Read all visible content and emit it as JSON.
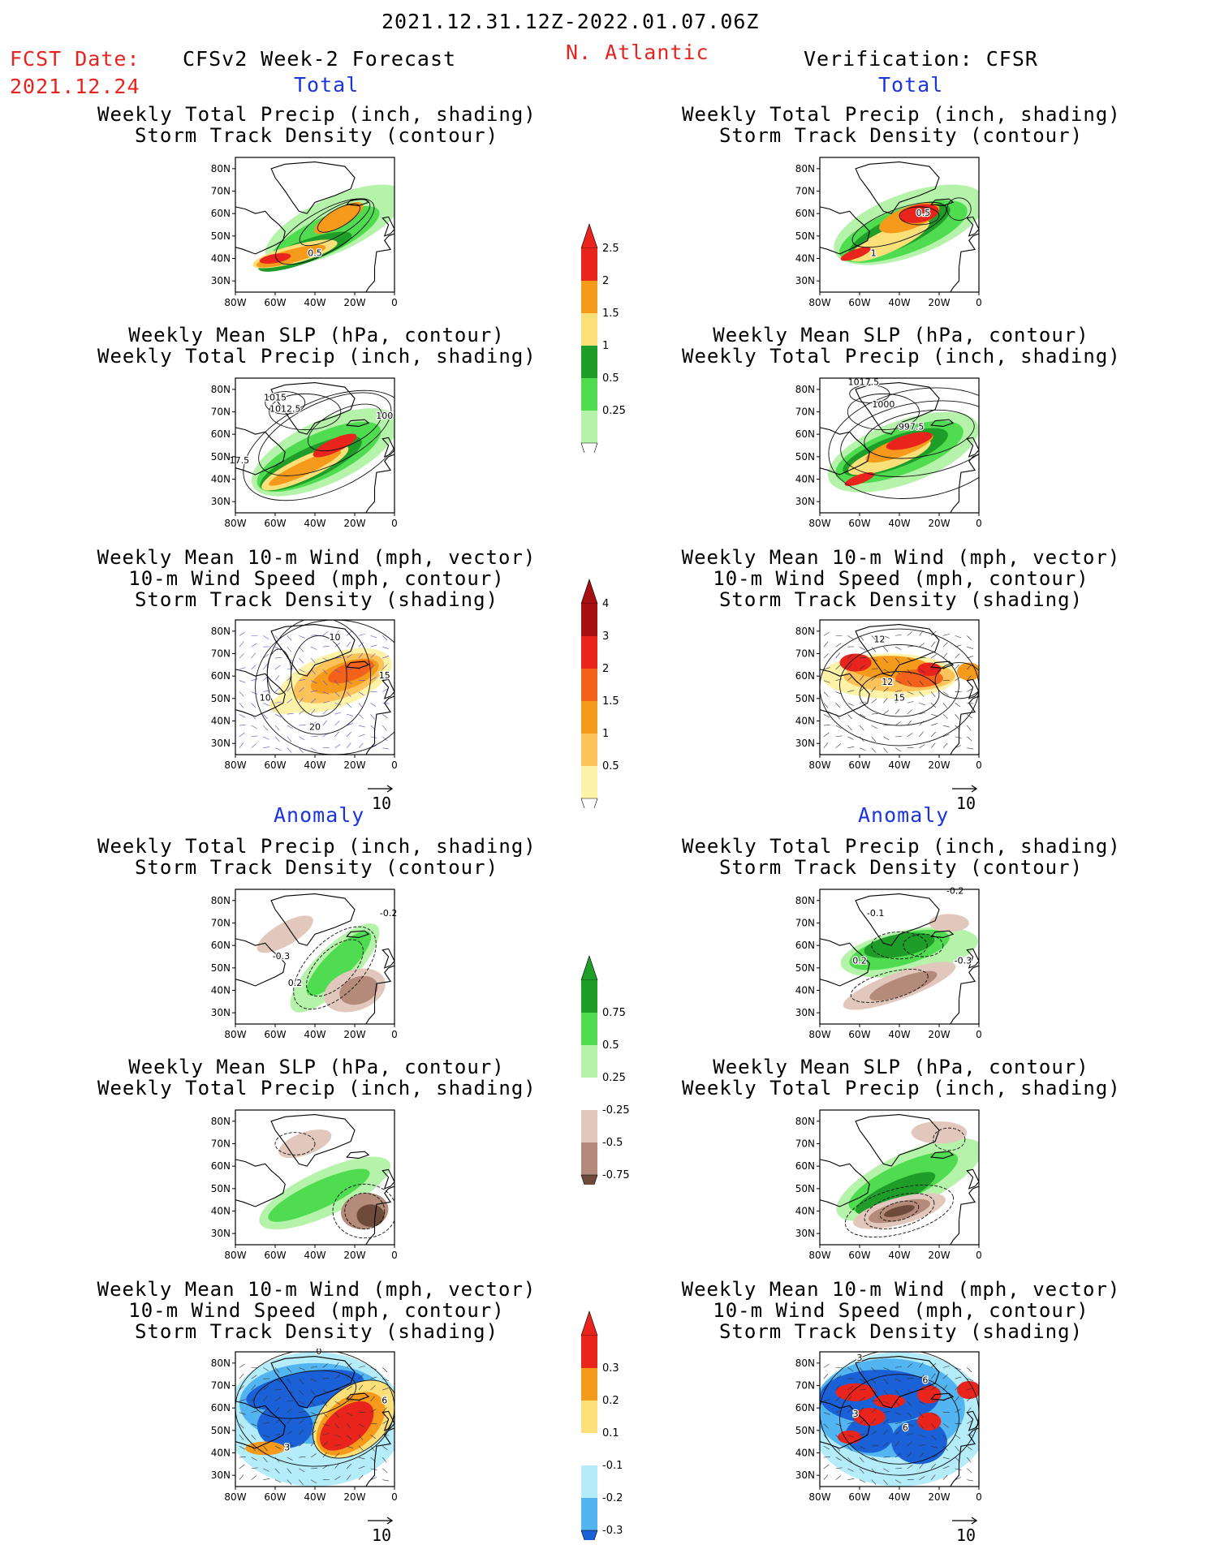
{
  "header": {
    "date_range": "2021.12.31.12Z-2022.01.07.06Z",
    "fcst_label": "FCST Date:",
    "fcst_date": "2021.12.24",
    "left_title": "CFSv2 Week-2 Forecast",
    "region": "N. Atlantic",
    "right_title": "Verification: CFSR"
  },
  "sections": {
    "total": "Total",
    "anomaly": "Anomaly"
  },
  "panel_titles": {
    "precip_track": "Weekly Total Precip (inch, shading)\nStorm Track Density (contour)",
    "slp_precip": "Weekly Mean SLP (hPa, contour)\nWeekly Total Precip (inch, shading)",
    "wind_track": "Weekly Mean 10-m Wind (mph, vector)\n10-m Wind Speed (mph, contour)\nStorm Track Density (shading)"
  },
  "axes": {
    "lat_ticks": [
      "80N",
      "70N",
      "60N",
      "50N",
      "40N",
      "30N"
    ],
    "lon_ticks": [
      "80W",
      "60W",
      "40W",
      "20W",
      "0"
    ]
  },
  "vector_ref": "10",
  "contour_labels": {
    "fc_precip_track": [
      "0.5"
    ],
    "ob_precip_track": [
      "0.5",
      "1"
    ],
    "fc_slp": [
      "1015",
      "1012.5",
      "100",
      "17.5"
    ],
    "ob_slp": [
      "1017.5",
      "1000",
      "997.5"
    ],
    "fc_wind": [
      "10",
      "15",
      "10",
      "20"
    ],
    "ob_wind": [
      "12",
      "12",
      "15"
    ],
    "fc_anom_precip": [
      "-0.3",
      "0.2",
      "-0.2"
    ],
    "ob_anom_precip": [
      "-0.2",
      "-0.1",
      "0.2",
      "-0.3"
    ],
    "fc_anom_wind": [
      "0",
      "6",
      "3"
    ],
    "ob_anom_wind": [
      "3",
      "6",
      "3",
      "6"
    ]
  },
  "colorbars": {
    "precip_total": {
      "labels": [
        "2.5",
        "2",
        "1.5",
        "1",
        "0.5",
        "0.25"
      ],
      "colors": [
        "#e8241c",
        "#f59a1a",
        "#fbe07a",
        "#1e9e28",
        "#50dc50",
        "#b6f3aa"
      ]
    },
    "track_total": {
      "labels": [
        "4",
        "3",
        "2",
        "1.5",
        "1",
        "0.5"
      ],
      "colors": [
        "#a61010",
        "#e8241c",
        "#f2621a",
        "#f59a1a",
        "#fbc35a",
        "#fdf3a8"
      ]
    },
    "precip_anom": {
      "labels": [
        "0.75",
        "0.5",
        "0.25",
        "-0.25",
        "-0.5",
        "-0.75"
      ],
      "colors": [
        "#1e9e28",
        "#50dc50",
        "#b6f3aa",
        "#ffffff",
        "#e2c8bc",
        "#b48a7a",
        "#6e4a3a"
      ]
    },
    "track_anom": {
      "labels": [
        "0.3",
        "0.2",
        "0.1",
        "-0.1",
        "-0.2",
        "-0.3"
      ],
      "colors": [
        "#e8241c",
        "#f59a1a",
        "#fbe07a",
        "#ffffff",
        "#b4ecfa",
        "#52b4f0",
        "#1a60d6"
      ]
    }
  }
}
